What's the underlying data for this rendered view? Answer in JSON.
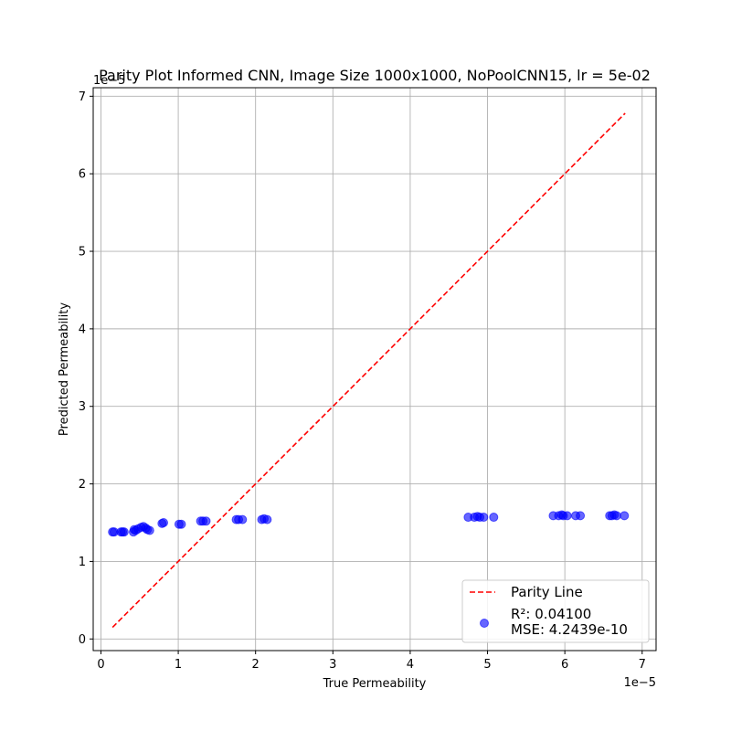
{
  "chart_data": {
    "type": "scatter",
    "title": "Parity Plot Informed CNN, Image Size 1000x1000, NoPoolCNN15, lr = 5e-02",
    "xlabel": "True Permeability",
    "ylabel": "Predicted Permeability",
    "x_offset_label": "1e−5",
    "y_offset_label": "1e−5",
    "xlim": [
      -1e-06,
      7.18e-05
    ],
    "ylim": [
      -1.5e-06,
      7.11e-05
    ],
    "x_ticks": [
      0,
      1e-05,
      2e-05,
      3e-05,
      4e-05,
      5e-05,
      6e-05,
      7e-05
    ],
    "x_tick_labels": [
      "0",
      "1",
      "2",
      "3",
      "4",
      "5",
      "6",
      "7"
    ],
    "y_ticks": [
      0,
      1e-05,
      2e-05,
      3e-05,
      4e-05,
      5e-05,
      6e-05,
      7e-05
    ],
    "y_tick_labels": [
      "0",
      "1",
      "2",
      "3",
      "4",
      "5",
      "6",
      "7"
    ],
    "grid": true,
    "legend_position": "bottom-right",
    "parity_line": {
      "name": "Parity Line",
      "color": "#ff0000",
      "x": [
        1.5e-06,
        6.78e-05
      ],
      "y": [
        1.5e-06,
        6.78e-05
      ]
    },
    "series": [
      {
        "name": "",
        "legend_lines": [
          "R²: 0.04100",
          "MSE: 4.2439e-10"
        ],
        "color": "#0000ff",
        "points": [
          [
            1.5e-06,
            1.38e-05
          ],
          [
            1.7e-06,
            1.38e-05
          ],
          [
            2.6e-06,
            1.38e-05
          ],
          [
            2.8e-06,
            1.38e-05
          ],
          [
            3e-06,
            1.38e-05
          ],
          [
            4.2e-06,
            1.38e-05
          ],
          [
            4.3e-06,
            1.41e-05
          ],
          [
            4.5e-06,
            1.4e-05
          ],
          [
            4.8e-06,
            1.42e-05
          ],
          [
            5.2e-06,
            1.44e-05
          ],
          [
            5.5e-06,
            1.45e-05
          ],
          [
            5.8e-06,
            1.43e-05
          ],
          [
            6e-06,
            1.41e-05
          ],
          [
            6.3e-06,
            1.4e-05
          ],
          [
            7.9e-06,
            1.49e-05
          ],
          [
            8.1e-06,
            1.5e-05
          ],
          [
            1.01e-05,
            1.48e-05
          ],
          [
            1.04e-05,
            1.48e-05
          ],
          [
            1.29e-05,
            1.52e-05
          ],
          [
            1.32e-05,
            1.52e-05
          ],
          [
            1.36e-05,
            1.52e-05
          ],
          [
            1.75e-05,
            1.54e-05
          ],
          [
            1.78e-05,
            1.54e-05
          ],
          [
            1.83e-05,
            1.54e-05
          ],
          [
            2.08e-05,
            1.54e-05
          ],
          [
            2.11e-05,
            1.55e-05
          ],
          [
            2.15e-05,
            1.54e-05
          ],
          [
            4.75e-05,
            1.57e-05
          ],
          [
            4.83e-05,
            1.57e-05
          ],
          [
            4.87e-05,
            1.58e-05
          ],
          [
            4.9e-05,
            1.57e-05
          ],
          [
            4.95e-05,
            1.57e-05
          ],
          [
            5.08e-05,
            1.57e-05
          ],
          [
            5.85e-05,
            1.59e-05
          ],
          [
            5.92e-05,
            1.59e-05
          ],
          [
            5.96e-05,
            1.6e-05
          ],
          [
            5.98e-05,
            1.59e-05
          ],
          [
            6.03e-05,
            1.59e-05
          ],
          [
            6.14e-05,
            1.59e-05
          ],
          [
            6.2e-05,
            1.59e-05
          ],
          [
            6.58e-05,
            1.59e-05
          ],
          [
            6.61e-05,
            1.59e-05
          ],
          [
            6.64e-05,
            1.6e-05
          ],
          [
            6.67e-05,
            1.59e-05
          ],
          [
            6.77e-05,
            1.59e-05
          ]
        ]
      }
    ]
  }
}
